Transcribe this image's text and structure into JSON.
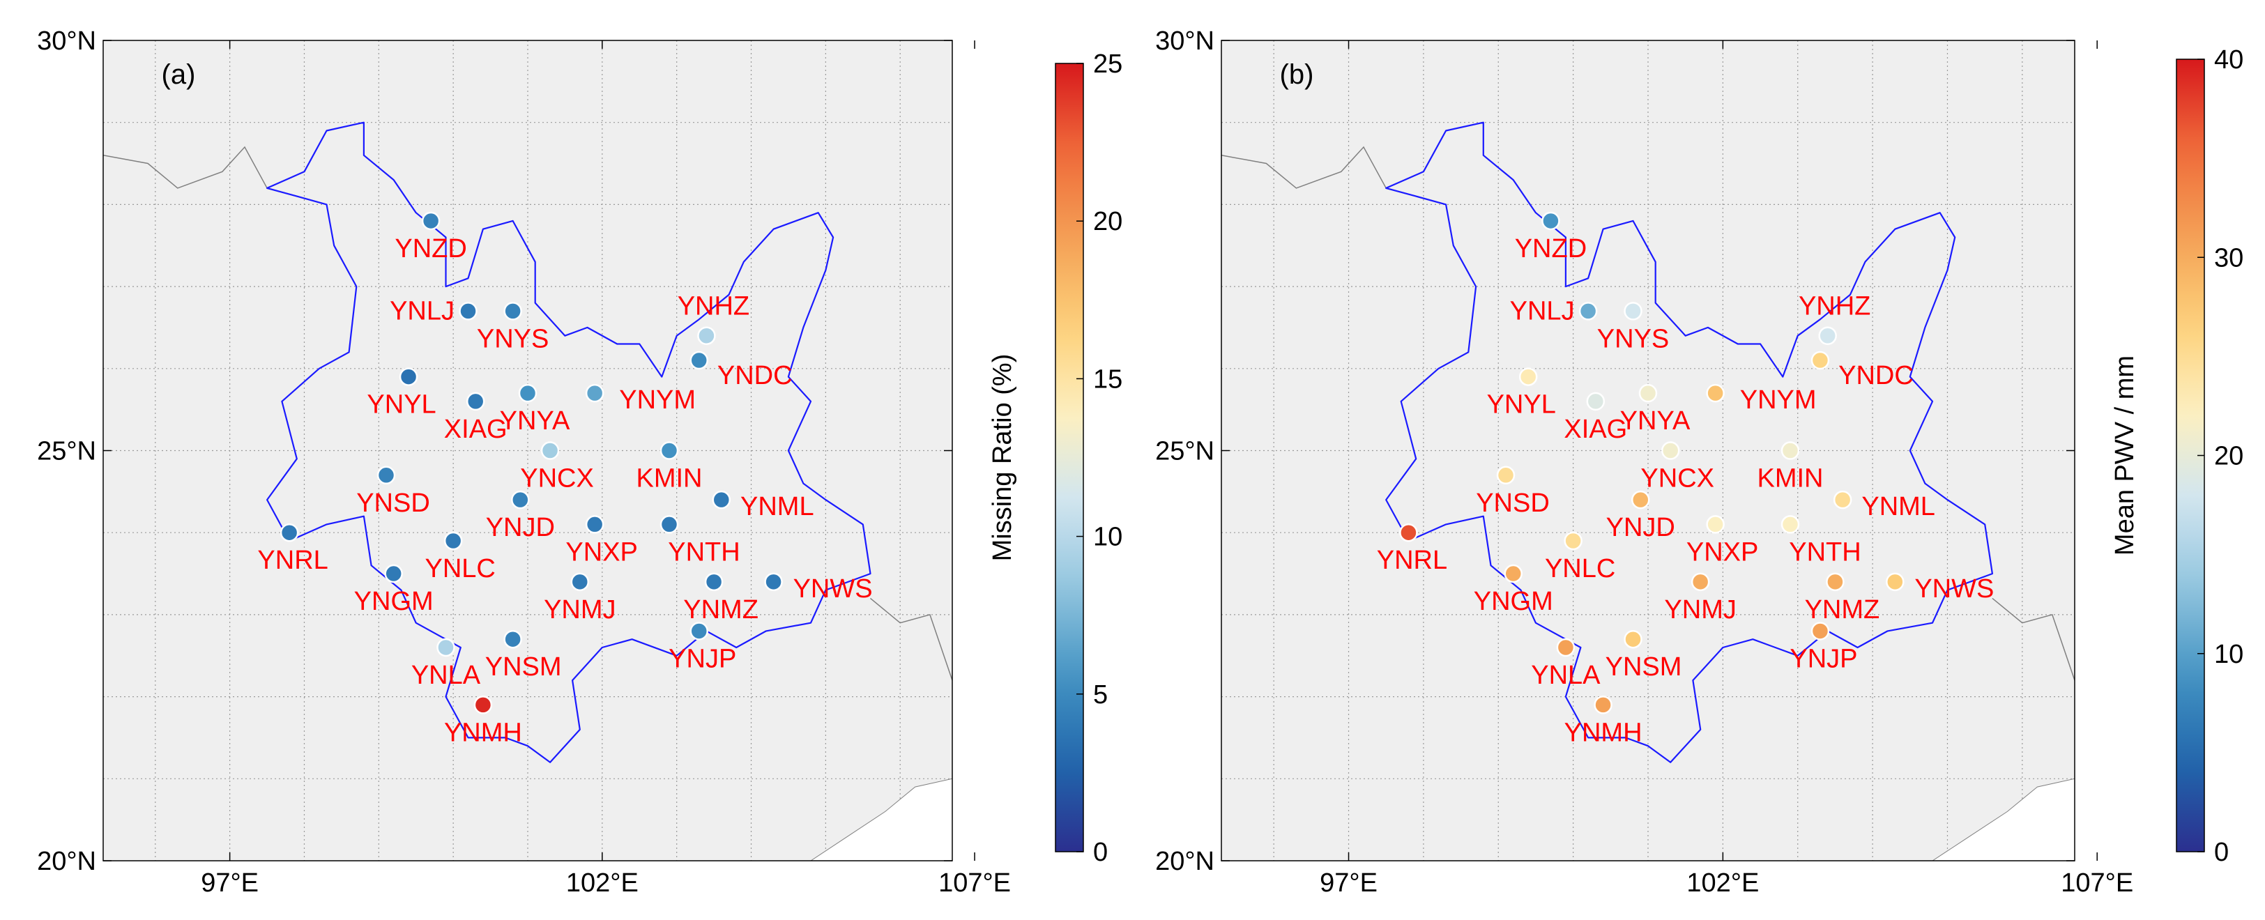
{
  "panels": [
    {
      "label": "(a)",
      "colorbar": {
        "title": "Missing Ratio (%)",
        "min": 0,
        "max": 25,
        "ticks": [
          "0",
          "5",
          "10",
          "15",
          "20",
          "25"
        ]
      },
      "stations": [
        {
          "name": "YNZD",
          "value": 4.5
        },
        {
          "name": "YNLJ",
          "value": 4.0
        },
        {
          "name": "YNYS",
          "value": 4.5
        },
        {
          "name": "YNHZ",
          "value": 9.5
        },
        {
          "name": "YNDC",
          "value": 5.0
        },
        {
          "name": "YNYL",
          "value": 3.5
        },
        {
          "name": "XIAG",
          "value": 4.0
        },
        {
          "name": "YNYA",
          "value": 5.5
        },
        {
          "name": "YNYM",
          "value": 6.5
        },
        {
          "name": "YNCX",
          "value": 9.0
        },
        {
          "name": "KMIN",
          "value": 5.5
        },
        {
          "name": "YNSD",
          "value": 4.5
        },
        {
          "name": "YNJD",
          "value": 4.5
        },
        {
          "name": "YNML",
          "value": 4.0
        },
        {
          "name": "YNRL",
          "value": 4.0
        },
        {
          "name": "YNXP",
          "value": 4.0
        },
        {
          "name": "YNTH",
          "value": 4.0
        },
        {
          "name": "YNLC",
          "value": 4.0
        },
        {
          "name": "YNGM",
          "value": 4.0
        },
        {
          "name": "YNMJ",
          "value": 4.0
        },
        {
          "name": "YNMZ",
          "value": 4.0
        },
        {
          "name": "YNWS",
          "value": 4.0
        },
        {
          "name": "YNLA",
          "value": 9.5
        },
        {
          "name": "YNSM",
          "value": 4.5
        },
        {
          "name": "YNJP",
          "value": 5.0
        },
        {
          "name": "YNMH",
          "value": 24.5
        }
      ]
    },
    {
      "label": "(b)",
      "colorbar": {
        "title": "Mean PWV / mm",
        "min": 0,
        "max": 40,
        "ticks": [
          "0",
          "10",
          "20",
          "30",
          "40"
        ]
      },
      "stations": [
        {
          "name": "YNZD",
          "value": 9.0
        },
        {
          "name": "YNLJ",
          "value": 11.0
        },
        {
          "name": "YNYS",
          "value": 18.0
        },
        {
          "name": "YNHZ",
          "value": 18.0
        },
        {
          "name": "YNDC",
          "value": 26.0
        },
        {
          "name": "YNYL",
          "value": 23.0
        },
        {
          "name": "XIAG",
          "value": 19.0
        },
        {
          "name": "YNYA",
          "value": 21.0
        },
        {
          "name": "YNYM",
          "value": 28.0
        },
        {
          "name": "YNCX",
          "value": 21.0
        },
        {
          "name": "KMIN",
          "value": 21.0
        },
        {
          "name": "YNSD",
          "value": 25.0
        },
        {
          "name": "YNJD",
          "value": 29.0
        },
        {
          "name": "YNML",
          "value": 25.0
        },
        {
          "name": "YNRL",
          "value": 37.0
        },
        {
          "name": "YNXP",
          "value": 22.0
        },
        {
          "name": "YNTH",
          "value": 22.0
        },
        {
          "name": "YNLC",
          "value": 25.0
        },
        {
          "name": "YNGM",
          "value": 30.0
        },
        {
          "name": "YNMJ",
          "value": 30.0
        },
        {
          "name": "YNMZ",
          "value": 30.0
        },
        {
          "name": "YNWS",
          "value": 27.0
        },
        {
          "name": "YNLA",
          "value": 31.0
        },
        {
          "name": "YNSM",
          "value": 27.0
        },
        {
          "name": "YNJP",
          "value": 31.0
        },
        {
          "name": "YNMH",
          "value": 31.0
        }
      ]
    }
  ],
  "axes": {
    "x_ticks": [
      {
        "value": 97,
        "label": "97°E"
      },
      {
        "value": 102,
        "label": "102°E"
      },
      {
        "value": 107,
        "label": "107°E"
      }
    ],
    "y_ticks": [
      {
        "value": 30,
        "label": "30°N"
      },
      {
        "value": 25,
        "label": "25°N"
      },
      {
        "value": 20,
        "label": "20°N"
      }
    ],
    "lon_range": [
      95.3,
      106.7
    ],
    "lat_range": [
      20,
      30
    ]
  },
  "colors": {
    "map_background": "#efefef",
    "province_border": "#1a1aff",
    "country_border": "#808080",
    "grid": "#9a9a9a",
    "station_label": "#ff0000",
    "colormap": [
      "#2b2f8f",
      "#2166ac",
      "#4393c3",
      "#92c5de",
      "#d1e5f0",
      "#fdf0c0",
      "#fdd07a",
      "#f4a055",
      "#ef6a3a",
      "#d7191c"
    ]
  }
}
